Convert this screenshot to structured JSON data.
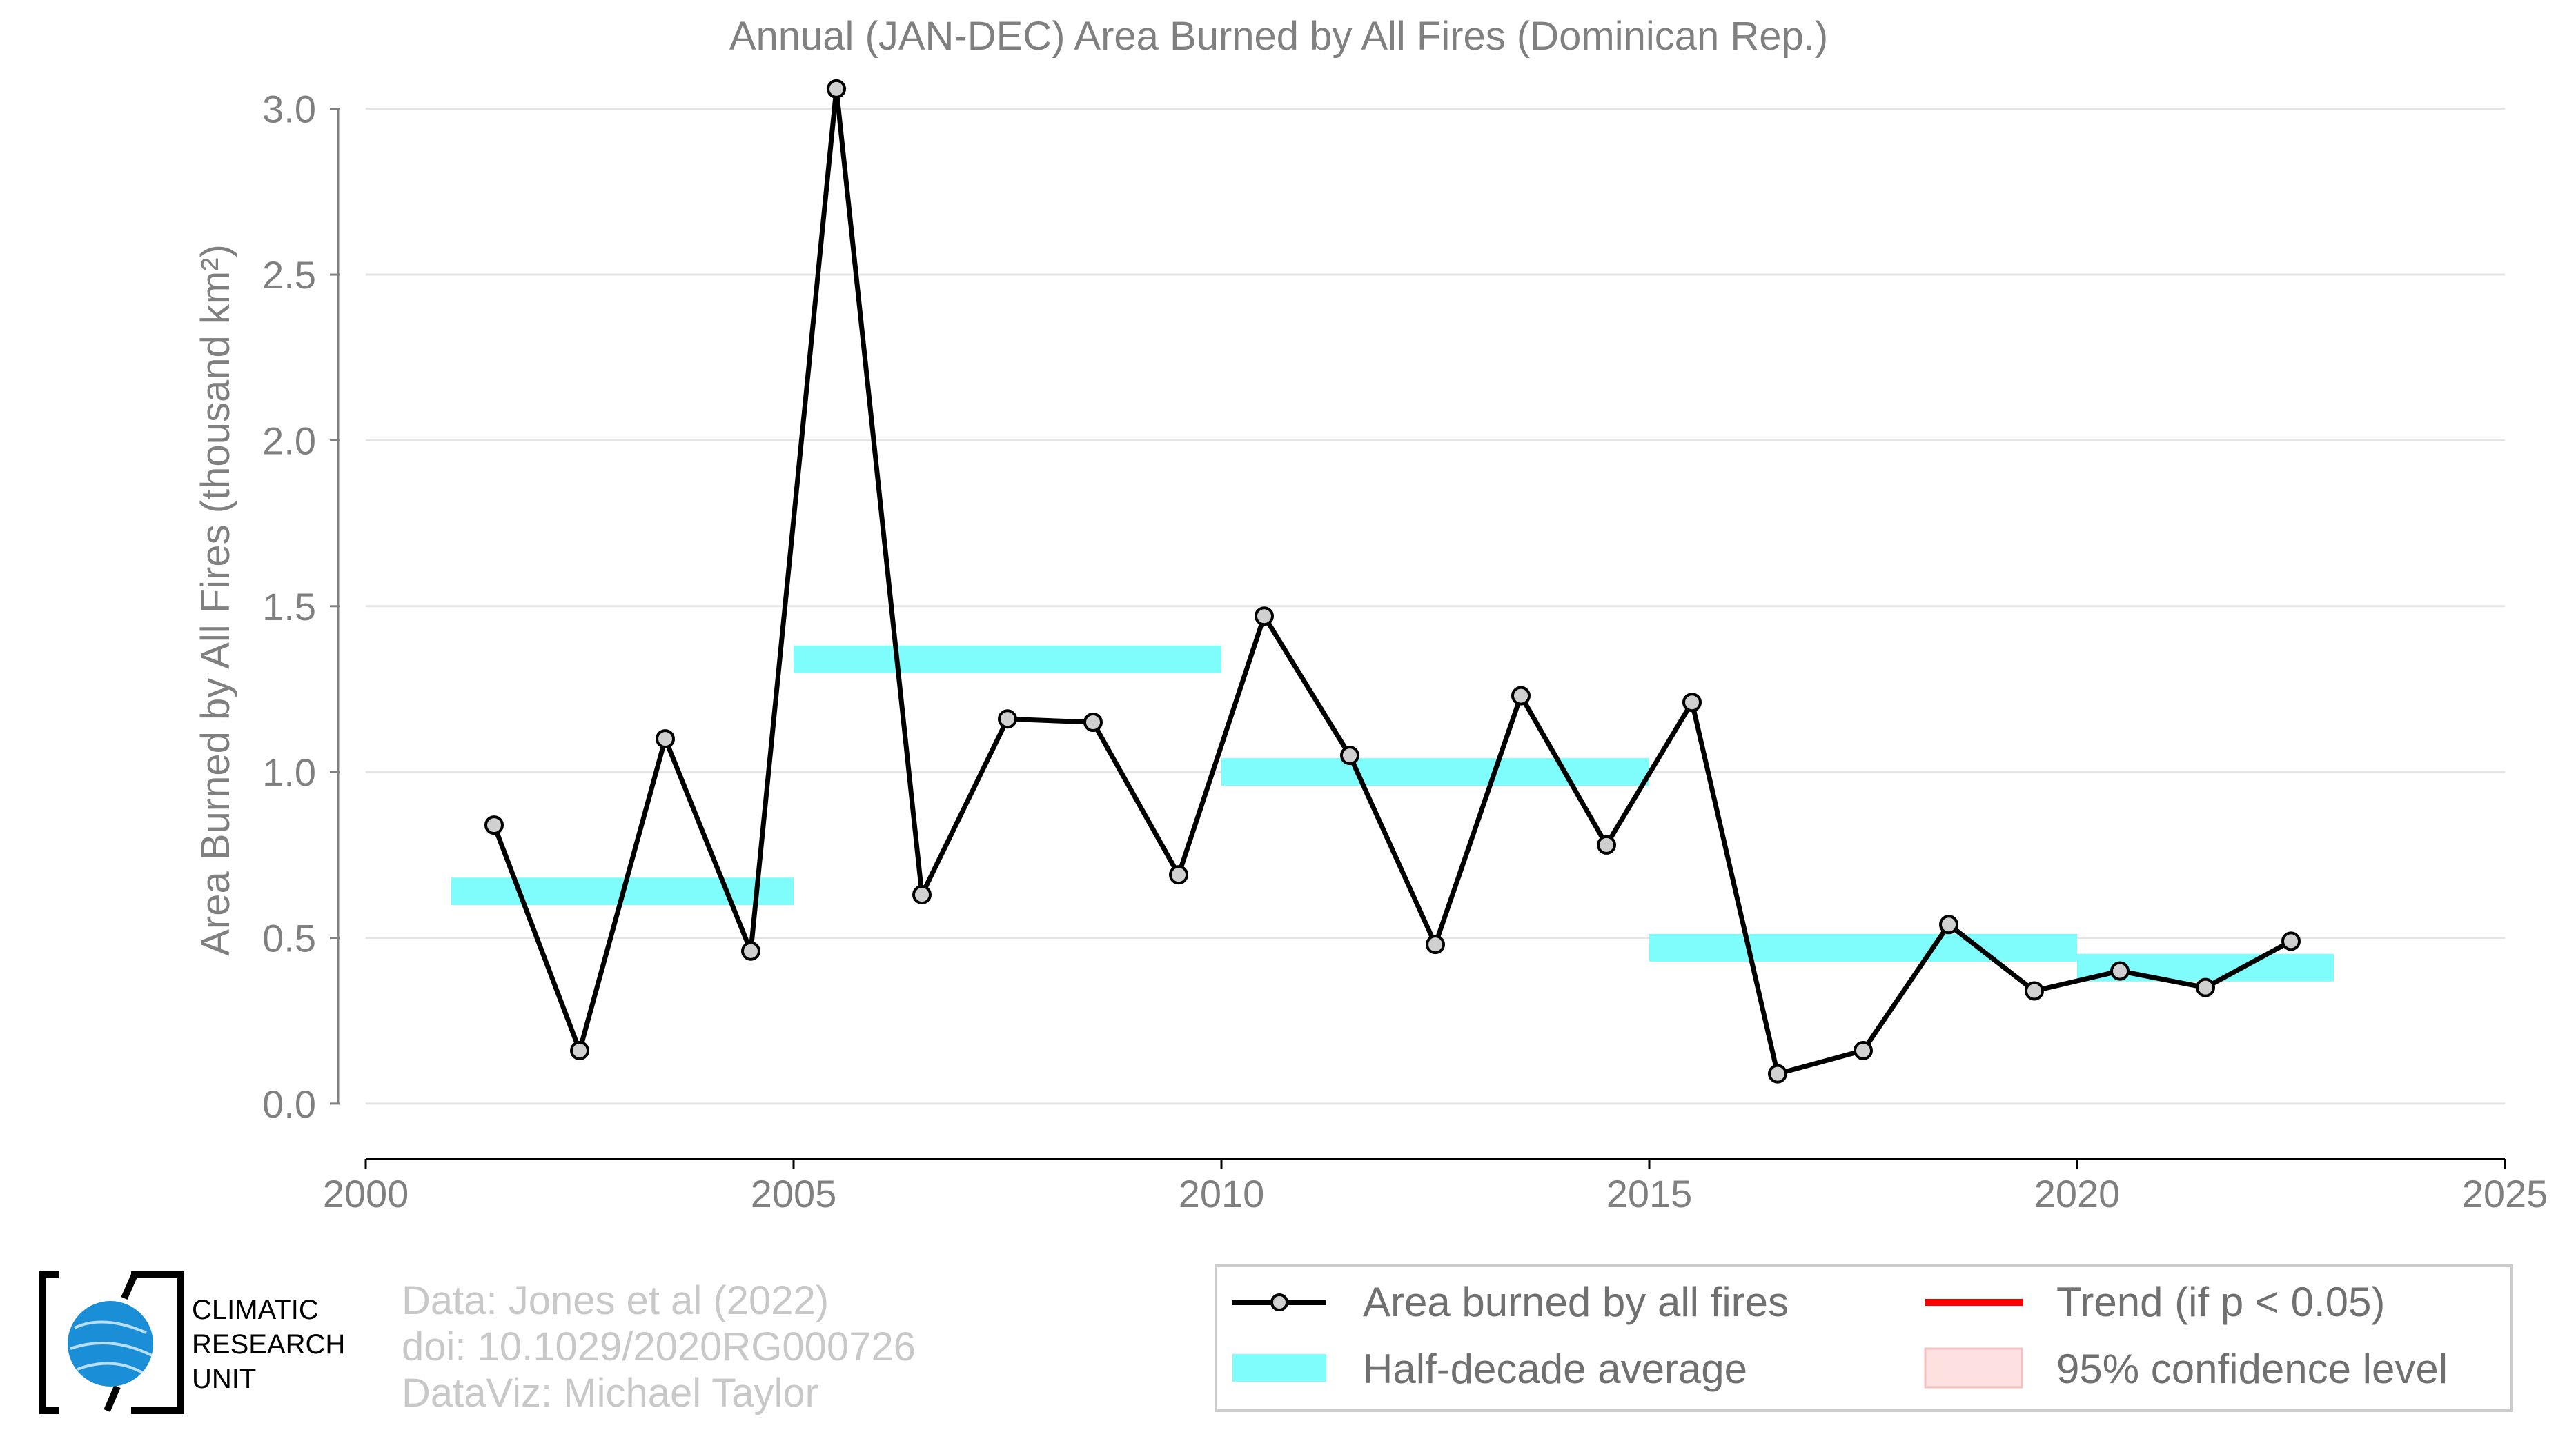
{
  "chart_data": {
    "type": "line",
    "title": "Annual (JAN-DEC) Area Burned by All Fires (Dominican Rep.)",
    "ylabel": "Area Burned by All Fires (thousand km²)",
    "xlim": [
      2000,
      2025
    ],
    "ylim": [
      -0.15,
      3.12
    ],
    "xticks": [
      2000,
      2005,
      2010,
      2015,
      2020,
      2025
    ],
    "yticks": [
      "0.0",
      "0.5",
      "1.0",
      "1.5",
      "2.0",
      "2.5",
      "3.0"
    ],
    "grid": "horizontal",
    "series": [
      {
        "name": "Area burned by all fires",
        "color": "#000000",
        "x": [
          2001.5,
          2002.5,
          2003.5,
          2004.5,
          2005.5,
          2006.5,
          2007.5,
          2008.5,
          2009.5,
          2010.5,
          2011.5,
          2012.5,
          2013.5,
          2014.5,
          2015.5,
          2016.5,
          2017.5,
          2018.5,
          2019.5,
          2020.5,
          2021.5,
          2022.5
        ],
        "y": [
          0.84,
          0.16,
          1.1,
          0.46,
          3.06,
          0.63,
          1.16,
          1.15,
          0.69,
          1.47,
          1.05,
          0.48,
          1.23,
          0.78,
          1.21,
          0.09,
          0.16,
          0.54,
          0.34,
          0.4,
          0.35,
          0.49
        ]
      }
    ],
    "half_decade_average": {
      "name": "Half-decade average",
      "color": "#7ffcfc",
      "segments": [
        {
          "x0": 2001,
          "x1": 2005,
          "y": 0.64
        },
        {
          "x0": 2005,
          "x1": 2010,
          "y": 1.34
        },
        {
          "x0": 2010,
          "x1": 2015,
          "y": 1.0
        },
        {
          "x0": 2015,
          "x1": 2020,
          "y": 0.47
        },
        {
          "x0": 2020,
          "x1": 2023,
          "y": 0.41
        }
      ]
    },
    "legend": {
      "position": "bottom-right",
      "items": [
        {
          "label": "Area burned by all fires",
          "color": "#000000",
          "kind": "line-marker"
        },
        {
          "label": "Trend (if p < 0.05)",
          "color": "#ff0000",
          "kind": "line"
        },
        {
          "label": "Half-decade average",
          "color": "#7ffcfc",
          "kind": "band"
        },
        {
          "label": "95% confidence level",
          "color": "#fde0e0",
          "kind": "box"
        }
      ]
    }
  },
  "credits": [
    "Data: Jones et al (2022)",
    "doi: 10.1029/2020RG000726",
    "DataViz: Michael Taylor"
  ],
  "logo": {
    "lines": [
      "CLIMATIC",
      "RESEARCH",
      "UNIT"
    ],
    "color": "#1a8fd8"
  }
}
